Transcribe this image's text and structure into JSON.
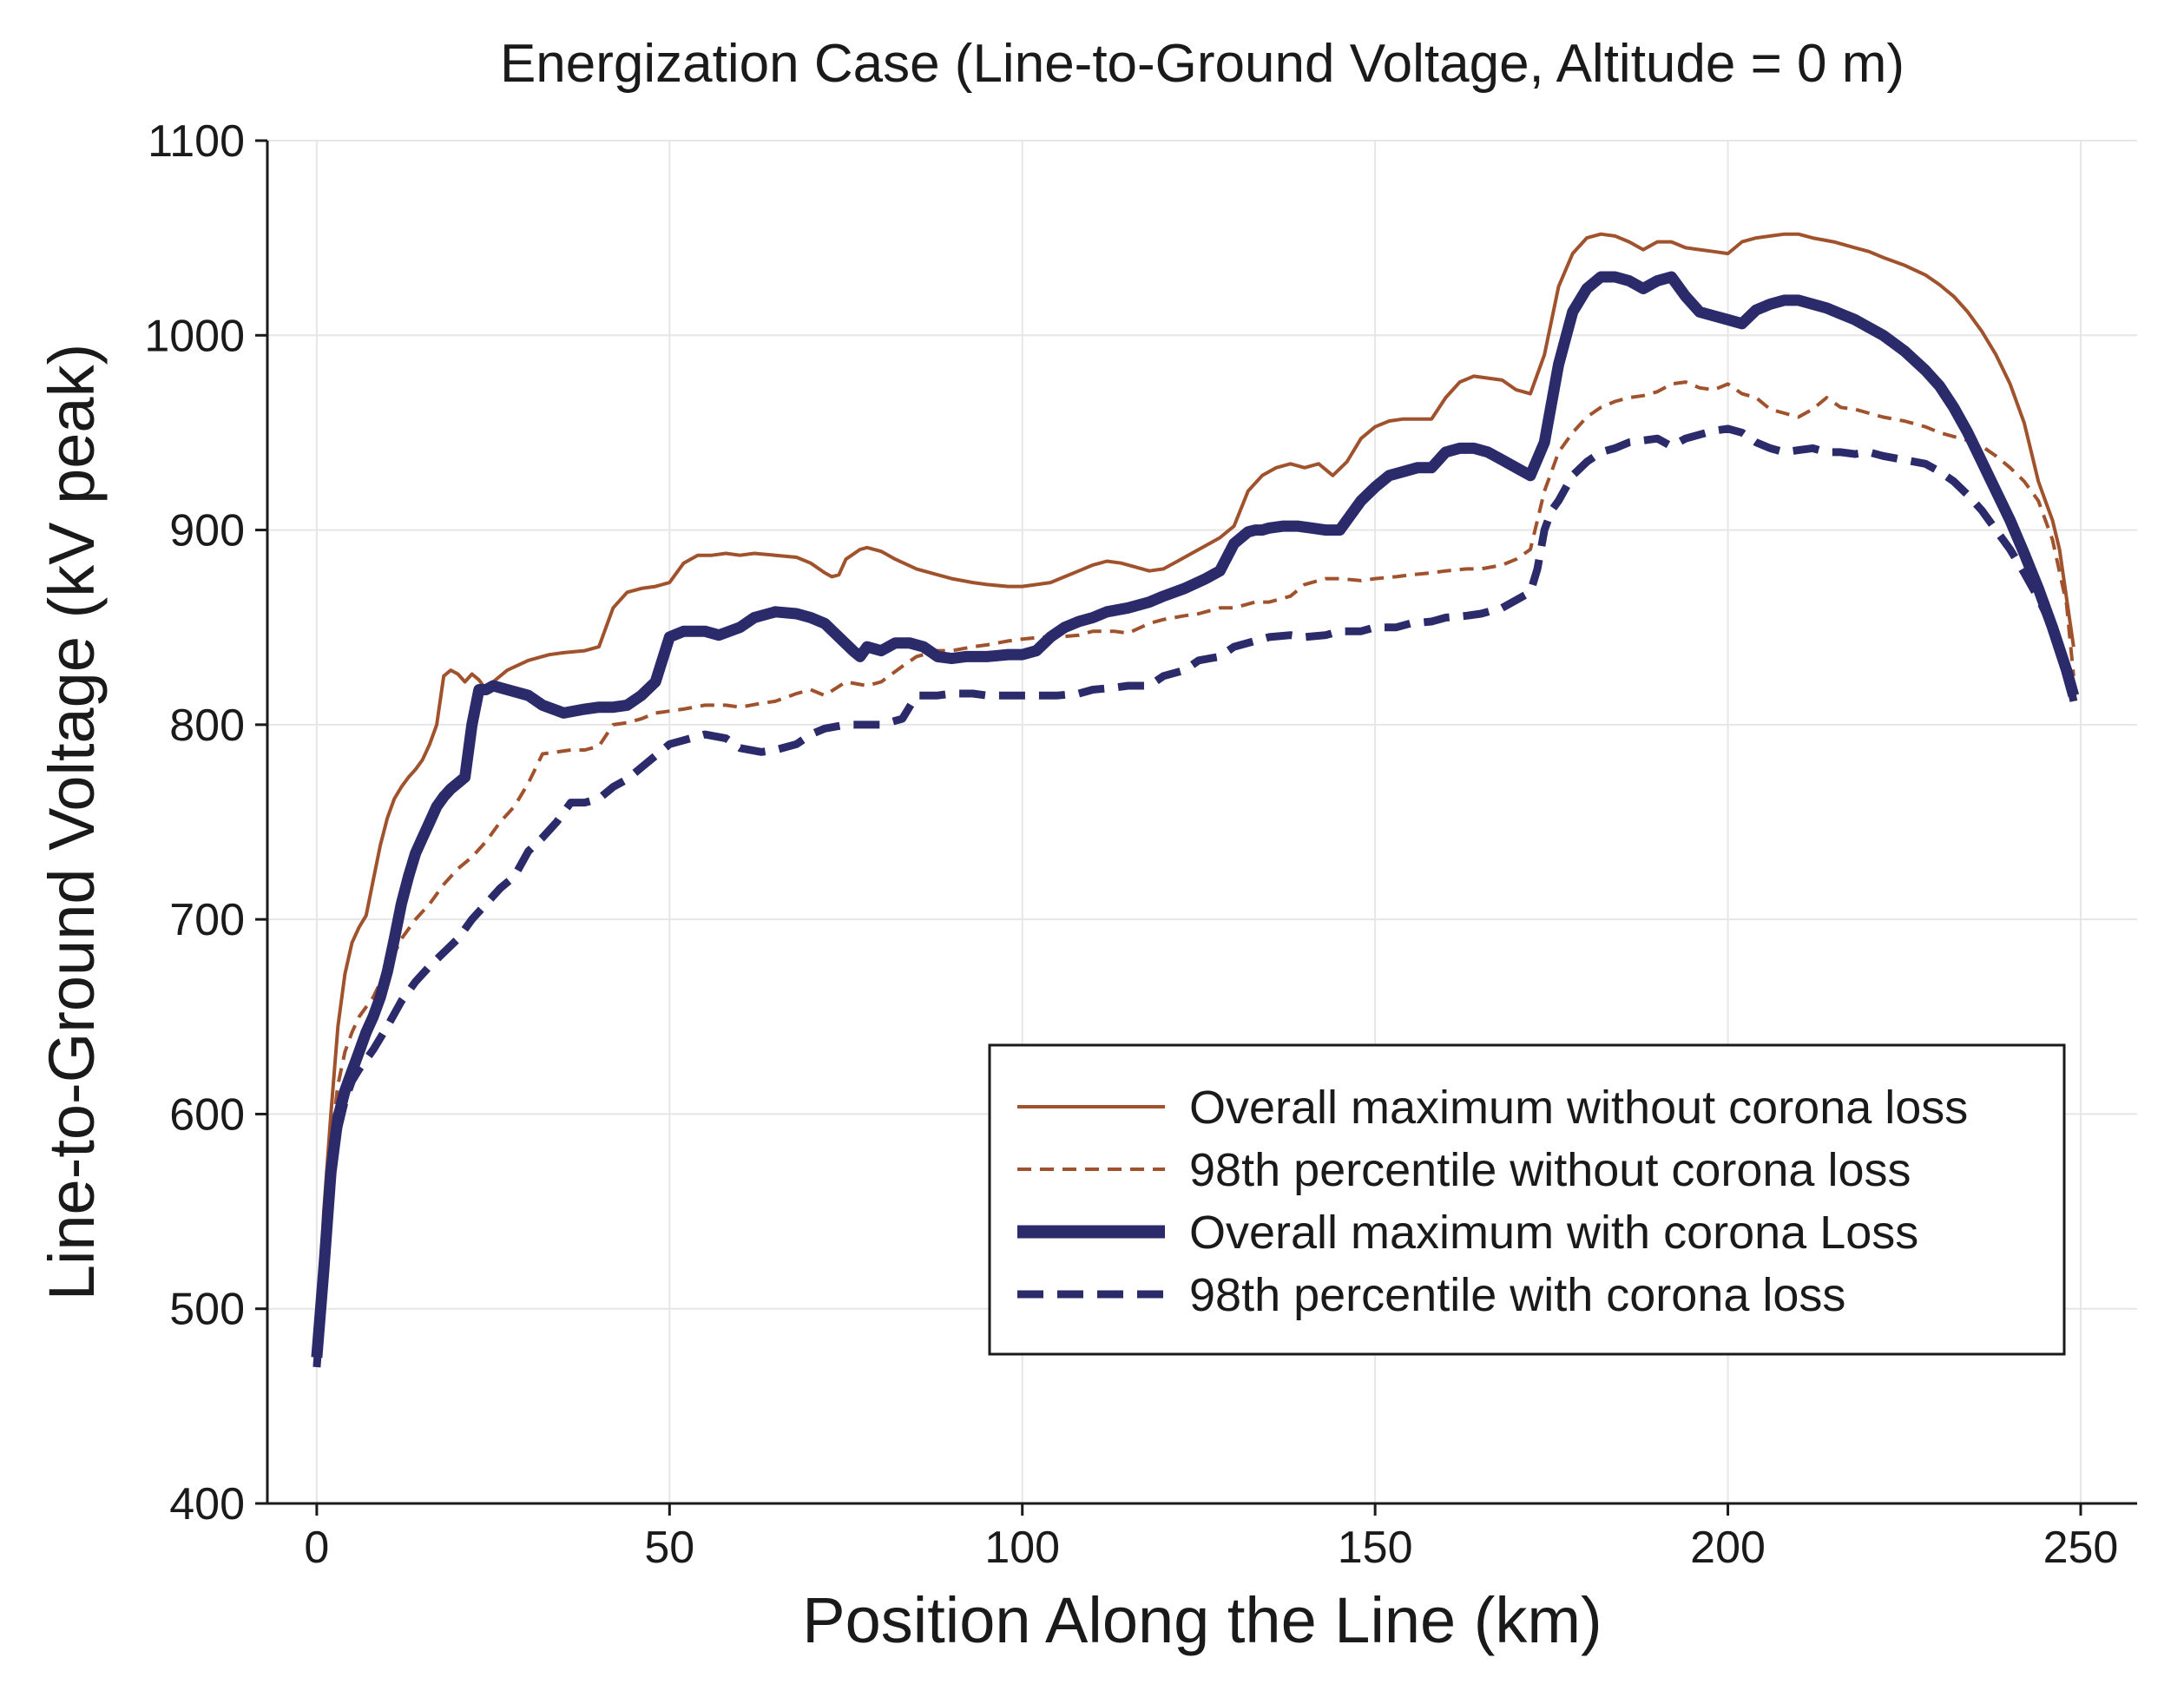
{
  "chart_data": {
    "type": "line",
    "title": "Energization Case (Line-to-Ground Voltage, Altitude = 0 m)",
    "xlabel": "Position Along the Line (km)",
    "ylabel": "Line-to-Ground Voltage (kV peak)",
    "xlim": [
      -7,
      258
    ],
    "ylim": [
      400,
      1100
    ],
    "xticks": [
      0,
      50,
      100,
      150,
      200,
      250
    ],
    "xtick_labels": [
      "0",
      "50",
      "100",
      "150",
      "200",
      "250"
    ],
    "yticks": [
      400,
      500,
      600,
      700,
      800,
      900,
      1000,
      1100
    ],
    "ytick_labels": [
      "400",
      "500",
      "600",
      "700",
      "800",
      "900",
      "1000",
      "1100"
    ],
    "grid": true,
    "legend_position": "lower-right",
    "colors": {
      "without_corona": "#a0522d",
      "with_corona": "#2b2a6b"
    },
    "series": [
      {
        "name": "Overall maximum without corona loss",
        "style": "solid-thin",
        "color": "#a0522d",
        "x": [
          0,
          1,
          2,
          3,
          4,
          5,
          6,
          7,
          8,
          9,
          10,
          11,
          12,
          13,
          14,
          15,
          16,
          17,
          18,
          19,
          20,
          21,
          22,
          23,
          24,
          25,
          27,
          30,
          33,
          35,
          38,
          40,
          42,
          44,
          46,
          48,
          50,
          52,
          54,
          56,
          58,
          60,
          62,
          65,
          68,
          70,
          72,
          73,
          74,
          75,
          77,
          78,
          80,
          82,
          85,
          88,
          90,
          93,
          95,
          98,
          100,
          102,
          104,
          106,
          108,
          110,
          112,
          114,
          116,
          118,
          120,
          122,
          124,
          126,
          128,
          130,
          132,
          134,
          136,
          138,
          140,
          142,
          144,
          146,
          148,
          150,
          152,
          154,
          156,
          158,
          160,
          162,
          164,
          166,
          168,
          170,
          172,
          174,
          176,
          178,
          180,
          182,
          184,
          186,
          188,
          190,
          192,
          194,
          196,
          198,
          200,
          202,
          204,
          206,
          208,
          210,
          212,
          215,
          218,
          220,
          222,
          225,
          228,
          230,
          232,
          234,
          236,
          238,
          240,
          241,
          242,
          243,
          244,
          245,
          246,
          247,
          248,
          249
        ],
        "y": [
          480,
          550,
          600,
          645,
          672,
          688,
          696,
          702,
          720,
          738,
          752,
          762,
          768,
          773,
          777,
          782,
          790,
          800,
          825,
          828,
          826,
          822,
          826,
          823,
          818,
          822,
          828,
          833,
          836,
          837,
          838,
          840,
          860,
          868,
          870,
          871,
          873,
          883,
          887,
          887,
          888,
          887,
          888,
          887,
          886,
          883,
          878,
          876,
          877,
          885,
          890,
          891,
          889,
          885,
          880,
          877,
          875,
          873,
          872,
          871,
          871,
          872,
          873,
          876,
          879,
          882,
          884,
          883,
          881,
          879,
          880,
          884,
          888,
          892,
          896,
          902,
          920,
          928,
          932,
          934,
          932,
          934,
          928,
          935,
          947,
          953,
          956,
          957,
          957,
          957,
          968,
          976,
          979,
          978,
          977,
          972,
          970,
          990,
          1025,
          1042,
          1050,
          1052,
          1051,
          1048,
          1044,
          1048,
          1048,
          1045,
          1044,
          1043,
          1042,
          1048,
          1050,
          1051,
          1052,
          1052,
          1050,
          1048,
          1045,
          1043,
          1040,
          1036,
          1031,
          1026,
          1020,
          1012,
          1002,
          990,
          975,
          965,
          955,
          940,
          925,
          915,
          905,
          890,
          865,
          840
        ]
      },
      {
        "name": "98th percentile without corona loss",
        "style": "dashed-thin",
        "color": "#a0522d",
        "x": [
          0,
          1,
          2,
          3,
          4,
          5,
          6,
          8,
          10,
          12,
          14,
          16,
          18,
          20,
          22,
          24,
          26,
          28,
          30,
          32,
          34,
          36,
          38,
          40,
          42,
          44,
          46,
          48,
          50,
          52,
          55,
          58,
          60,
          63,
          65,
          68,
          70,
          72,
          75,
          78,
          80,
          83,
          85,
          88,
          90,
          93,
          95,
          98,
          100,
          103,
          105,
          108,
          110,
          113,
          115,
          118,
          120,
          123,
          125,
          128,
          130,
          133,
          135,
          138,
          140,
          143,
          145,
          148,
          150,
          153,
          155,
          158,
          160,
          163,
          165,
          168,
          170,
          172,
          173,
          174,
          175,
          176,
          178,
          180,
          182,
          184,
          186,
          188,
          190,
          192,
          194,
          196,
          198,
          200,
          202,
          204,
          206,
          208,
          210,
          212,
          214,
          216,
          218,
          220,
          222,
          225,
          228,
          230,
          232,
          234,
          236,
          238,
          240,
          242,
          244,
          246,
          248,
          249
        ],
        "y": [
          478,
          540,
          585,
          615,
          632,
          642,
          650,
          660,
          675,
          690,
          700,
          708,
          718,
          726,
          732,
          740,
          750,
          758,
          770,
          785,
          786,
          787,
          787,
          789,
          800,
          801,
          803,
          806,
          807,
          808,
          810,
          810,
          809,
          811,
          812,
          816,
          818,
          815,
          822,
          820,
          822,
          830,
          835,
          838,
          838,
          840,
          841,
          843,
          844,
          845,
          845,
          846,
          848,
          848,
          847,
          852,
          854,
          856,
          857,
          860,
          860,
          863,
          863,
          866,
          872,
          875,
          875,
          874,
          875,
          876,
          877,
          878,
          879,
          880,
          880,
          882,
          885,
          890,
          905,
          920,
          930,
          940,
          950,
          958,
          963,
          966,
          968,
          969,
          971,
          975,
          976,
          973,
          972,
          975,
          970,
          968,
          962,
          960,
          958,
          962,
          968,
          963,
          962,
          960,
          958,
          956,
          953,
          950,
          948,
          946,
          943,
          938,
          932,
          925,
          915,
          895,
          862,
          825
        ]
      },
      {
        "name": "Overall maximum with corona Loss",
        "style": "solid-thick",
        "color": "#2b2a6b",
        "x": [
          0,
          1,
          2,
          3,
          4,
          5,
          6,
          7,
          8,
          9,
          10,
          11,
          12,
          13,
          14,
          15,
          16,
          17,
          18,
          19,
          20,
          21,
          22,
          23,
          24,
          25,
          27,
          30,
          32,
          35,
          38,
          40,
          42,
          44,
          46,
          48,
          50,
          52,
          55,
          57,
          60,
          62,
          65,
          68,
          70,
          72,
          74,
          76,
          77,
          78,
          80,
          82,
          84,
          86,
          88,
          90,
          92,
          95,
          98,
          100,
          102,
          104,
          106,
          108,
          110,
          112,
          115,
          118,
          120,
          123,
          126,
          128,
          130,
          132,
          133,
          134,
          135,
          137,
          139,
          141,
          143,
          145,
          147,
          148,
          150,
          152,
          154,
          156,
          158,
          160,
          162,
          164,
          166,
          168,
          170,
          172,
          174,
          176,
          178,
          180,
          182,
          184,
          186,
          188,
          190,
          192,
          194,
          196,
          198,
          200,
          202,
          204,
          206,
          208,
          210,
          212,
          214,
          216,
          218,
          220,
          222,
          225,
          228,
          230,
          232,
          234,
          236,
          238,
          240,
          242,
          244,
          246,
          248,
          249
        ],
        "y": [
          475,
          520,
          570,
          598,
          612,
          622,
          632,
          642,
          650,
          660,
          673,
          690,
          708,
          722,
          734,
          742,
          750,
          758,
          763,
          767,
          770,
          773,
          800,
          818,
          818,
          820,
          818,
          815,
          810,
          806,
          808,
          809,
          809,
          810,
          815,
          822,
          845,
          848,
          848,
          846,
          850,
          855,
          858,
          857,
          855,
          852,
          845,
          838,
          835,
          840,
          838,
          842,
          842,
          840,
          835,
          834,
          835,
          835,
          836,
          836,
          838,
          845,
          850,
          853,
          855,
          858,
          860,
          863,
          866,
          870,
          875,
          879,
          893,
          899,
          900,
          900,
          901,
          902,
          902,
          901,
          900,
          900,
          910,
          915,
          922,
          928,
          930,
          932,
          932,
          940,
          942,
          942,
          940,
          936,
          932,
          928,
          945,
          985,
          1012,
          1024,
          1030,
          1030,
          1028,
          1024,
          1028,
          1030,
          1020,
          1012,
          1010,
          1008,
          1006,
          1013,
          1016,
          1018,
          1018,
          1016,
          1014,
          1011,
          1008,
          1004,
          1000,
          992,
          982,
          974,
          963,
          950,
          935,
          920,
          905,
          888,
          870,
          850,
          828,
          815
        ]
      },
      {
        "name": "98th percentile with corona loss",
        "style": "dashed-thick",
        "color": "#2b2a6b",
        "x": [
          0,
          1,
          2,
          3,
          4,
          5,
          6,
          8,
          10,
          12,
          14,
          16,
          18,
          20,
          22,
          24,
          26,
          28,
          30,
          32,
          34,
          36,
          38,
          40,
          42,
          44,
          46,
          48,
          50,
          52,
          55,
          58,
          60,
          63,
          65,
          68,
          70,
          72,
          75,
          78,
          80,
          83,
          85,
          87,
          88,
          90,
          93,
          95,
          98,
          100,
          103,
          105,
          108,
          110,
          113,
          115,
          118,
          120,
          123,
          125,
          128,
          130,
          133,
          135,
          138,
          140,
          143,
          145,
          148,
          150,
          153,
          155,
          158,
          160,
          163,
          165,
          168,
          170,
          172,
          173,
          174,
          175,
          176,
          178,
          180,
          182,
          184,
          186,
          188,
          190,
          192,
          194,
          196,
          198,
          200,
          202,
          204,
          206,
          208,
          210,
          212,
          214,
          216,
          218,
          220,
          222,
          225,
          228,
          230,
          232,
          234,
          236,
          238,
          240,
          242,
          244,
          246,
          248,
          249
        ],
        "y": [
          470,
          520,
          565,
          592,
          607,
          617,
          623,
          633,
          645,
          658,
          668,
          676,
          683,
          690,
          700,
          708,
          716,
          722,
          735,
          742,
          750,
          760,
          760,
          762,
          768,
          772,
          778,
          784,
          790,
          792,
          795,
          793,
          788,
          786,
          787,
          790,
          795,
          798,
          800,
          800,
          800,
          803,
          815,
          815,
          815,
          816,
          816,
          815,
          815,
          815,
          815,
          815,
          816,
          818,
          819,
          820,
          820,
          825,
          828,
          833,
          835,
          840,
          843,
          845,
          846,
          845,
          846,
          848,
          848,
          850,
          850,
          852,
          853,
          855,
          856,
          857,
          860,
          864,
          868,
          880,
          900,
          910,
          915,
          928,
          935,
          940,
          942,
          945,
          946,
          947,
          943,
          947,
          949,
          951,
          952,
          950,
          945,
          942,
          940,
          941,
          942,
          940,
          940,
          939,
          940,
          938,
          936,
          934,
          930,
          925,
          918,
          910,
          900,
          890,
          878,
          865,
          850,
          830,
          812
        ]
      }
    ]
  }
}
